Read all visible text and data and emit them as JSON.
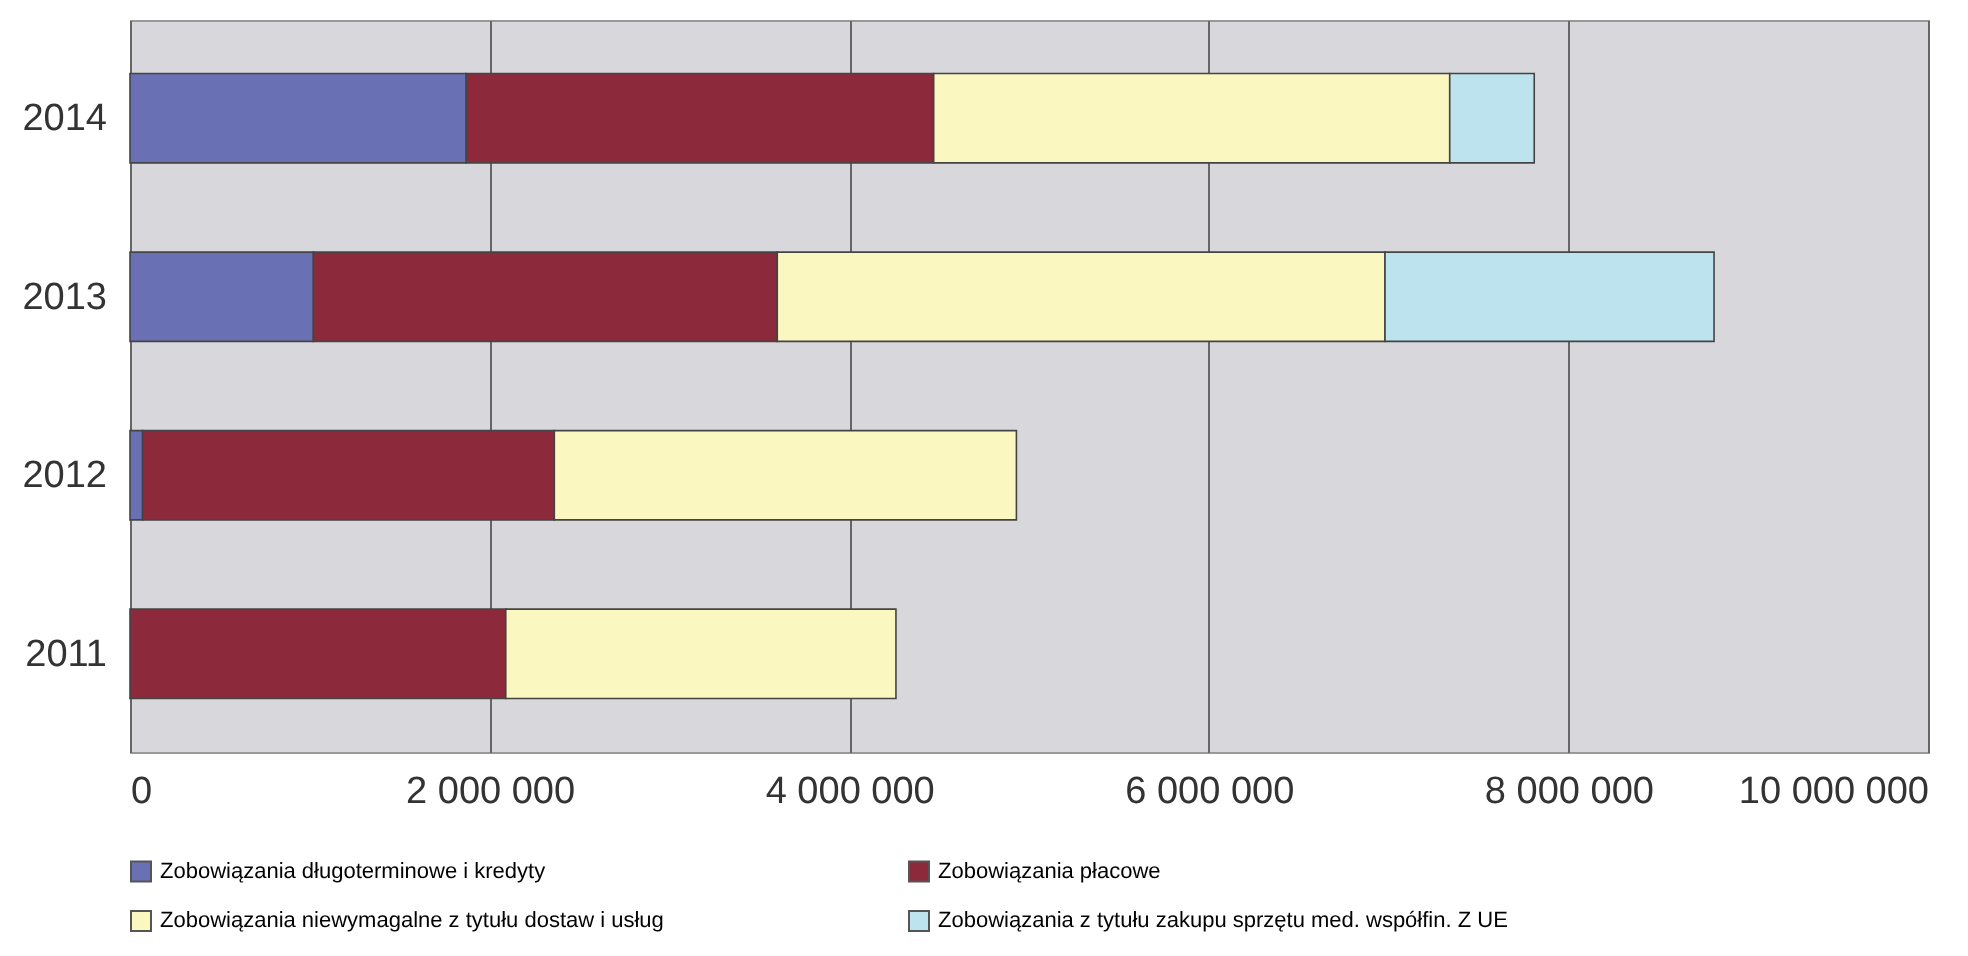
{
  "chart_data": {
    "type": "bar",
    "orientation": "horizontal",
    "stacked": true,
    "categories": [
      "2014",
      "2013",
      "2012",
      "2011"
    ],
    "series": [
      {
        "name": "Zobowiązania długoterminowe i kredyty",
        "color": "#6a70b4",
        "values": [
          1870000,
          1020000,
          70000,
          null
        ]
      },
      {
        "name": "Zobowiązania płacowe",
        "color": "#8c2a3c",
        "values": [
          2600000,
          2580000,
          2290000,
          2090000
        ]
      },
      {
        "name": "Zobowiązania niewymagalne z tytułu dostaw i usług",
        "color": "#fbf7c0",
        "values": [
          2870000,
          3380000,
          2570000,
          2170000
        ]
      },
      {
        "name": "Zobowiązania z tytułu zakupu sprzętu med. współfin. Z UE",
        "color": "#bde3ee",
        "values": [
          470000,
          1830000,
          null,
          null
        ]
      }
    ],
    "xlim": [
      0,
      10000000
    ],
    "xticks": [
      0,
      {
        "value": 2000000,
        "label": "2 000 000"
      },
      {
        "value": 4000000,
        "label": "4 000 000"
      },
      {
        "value": 6000000,
        "label": "6 000 000"
      },
      {
        "value": 8000000,
        "label": "8 000 000"
      },
      {
        "value": 10000000,
        "label": "10 000 000"
      }
    ],
    "grid": "x",
    "legend": "bottom"
  }
}
